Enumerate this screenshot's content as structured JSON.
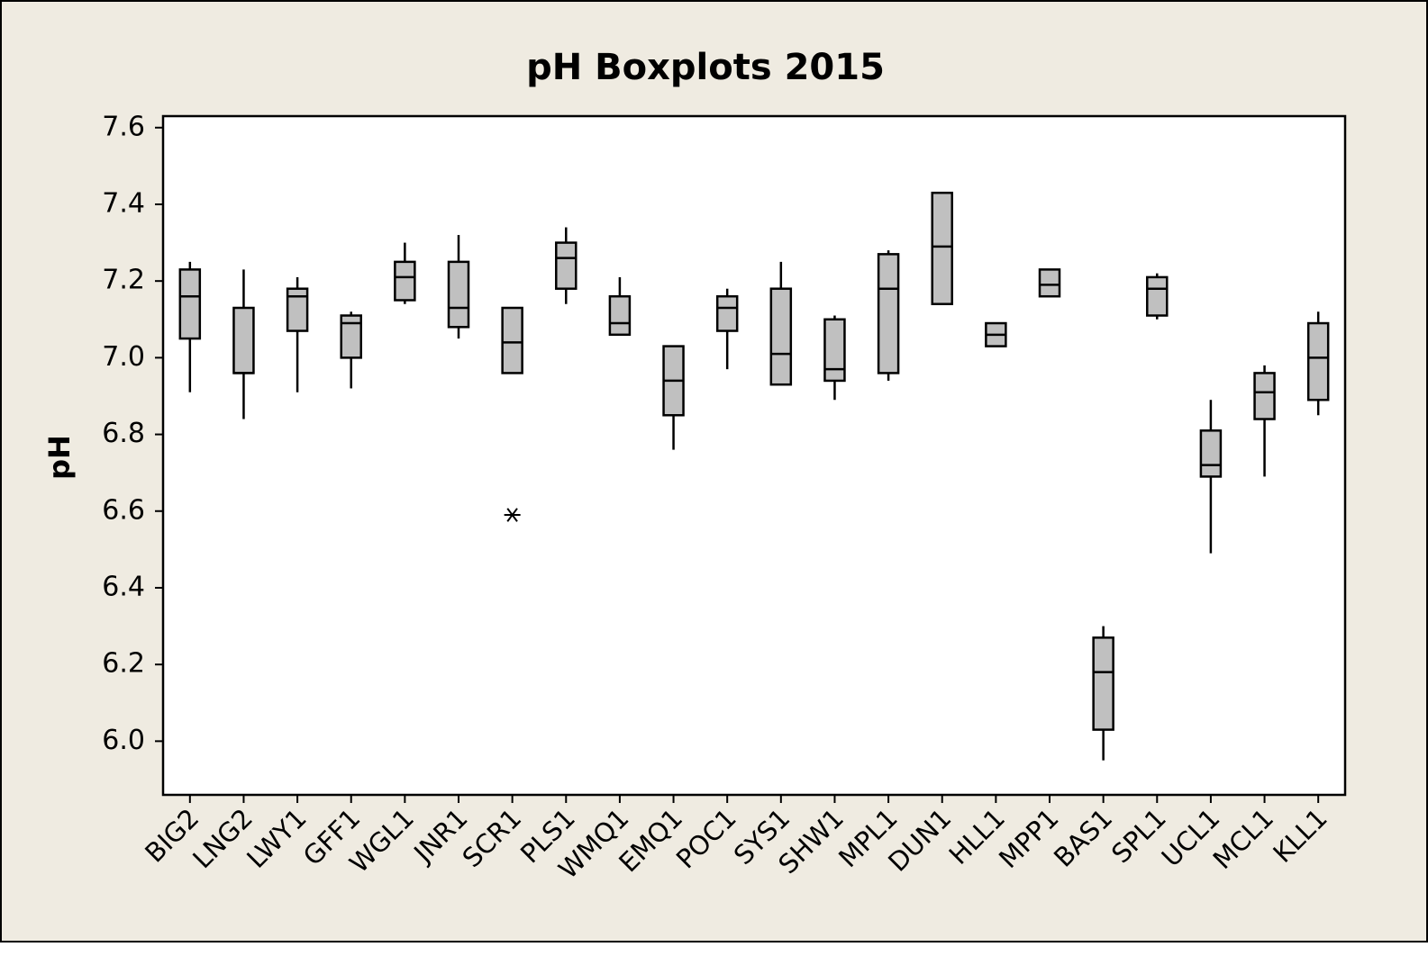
{
  "chart_data": {
    "type": "boxplot",
    "title": "pH Boxplots 2015",
    "y_label": "pH",
    "categories": [
      "BIG2",
      "LNG2",
      "LWY1",
      "GFF1",
      "WGL1",
      "JNR1",
      "SCR1",
      "PLS1",
      "WMQ1",
      "EMQ1",
      "POC1",
      "SYS1",
      "SHW1",
      "MPL1",
      "DUN1",
      "HLL1",
      "MPP1",
      "BAS1",
      "SPL1",
      "UCL1",
      "MCL1",
      "KLL1"
    ],
    "min": [
      6.91,
      6.84,
      6.91,
      6.92,
      7.14,
      7.05,
      6.96,
      7.14,
      7.06,
      6.76,
      6.97,
      6.93,
      6.89,
      6.94,
      7.14,
      7.03,
      7.16,
      5.95,
      7.1,
      6.49,
      6.69,
      6.85
    ],
    "q1": [
      7.05,
      6.96,
      7.07,
      7.0,
      7.15,
      7.08,
      6.96,
      7.18,
      7.06,
      6.85,
      7.07,
      6.93,
      6.94,
      6.96,
      7.14,
      7.03,
      7.16,
      6.03,
      7.11,
      6.69,
      6.84,
      6.89
    ],
    "median": [
      7.16,
      6.96,
      7.16,
      7.09,
      7.21,
      7.13,
      7.04,
      7.26,
      7.09,
      6.94,
      7.13,
      7.01,
      6.97,
      7.18,
      7.29,
      7.06,
      7.19,
      6.18,
      7.18,
      6.72,
      6.91,
      7.0
    ],
    "q3": [
      7.23,
      7.13,
      7.18,
      7.11,
      7.25,
      7.25,
      7.13,
      7.3,
      7.16,
      7.03,
      7.16,
      7.18,
      7.1,
      7.27,
      7.43,
      7.09,
      7.23,
      6.27,
      7.21,
      6.81,
      6.96,
      7.09
    ],
    "max": [
      7.25,
      7.23,
      7.21,
      7.12,
      7.3,
      7.32,
      7.13,
      7.34,
      7.21,
      7.03,
      7.18,
      7.25,
      7.11,
      7.28,
      7.43,
      7.09,
      7.23,
      6.3,
      7.22,
      6.89,
      6.98,
      7.12
    ],
    "outliers": [
      [],
      [],
      [],
      [],
      [],
      [],
      [
        6.59
      ],
      [],
      [],
      [],
      [],
      [],
      [],
      [],
      [],
      [],
      [],
      [],
      [],
      [],
      [],
      []
    ],
    "color": "#c0c0c0",
    "ylim": [
      5.86,
      7.63
    ],
    "yticks": [
      {
        "value": 6,
        "label": "6.0"
      },
      6.2,
      6.4,
      6.6,
      6.8,
      {
        "value": 7,
        "label": "7.0"
      },
      7.2,
      7.4,
      7.6
    ]
  }
}
